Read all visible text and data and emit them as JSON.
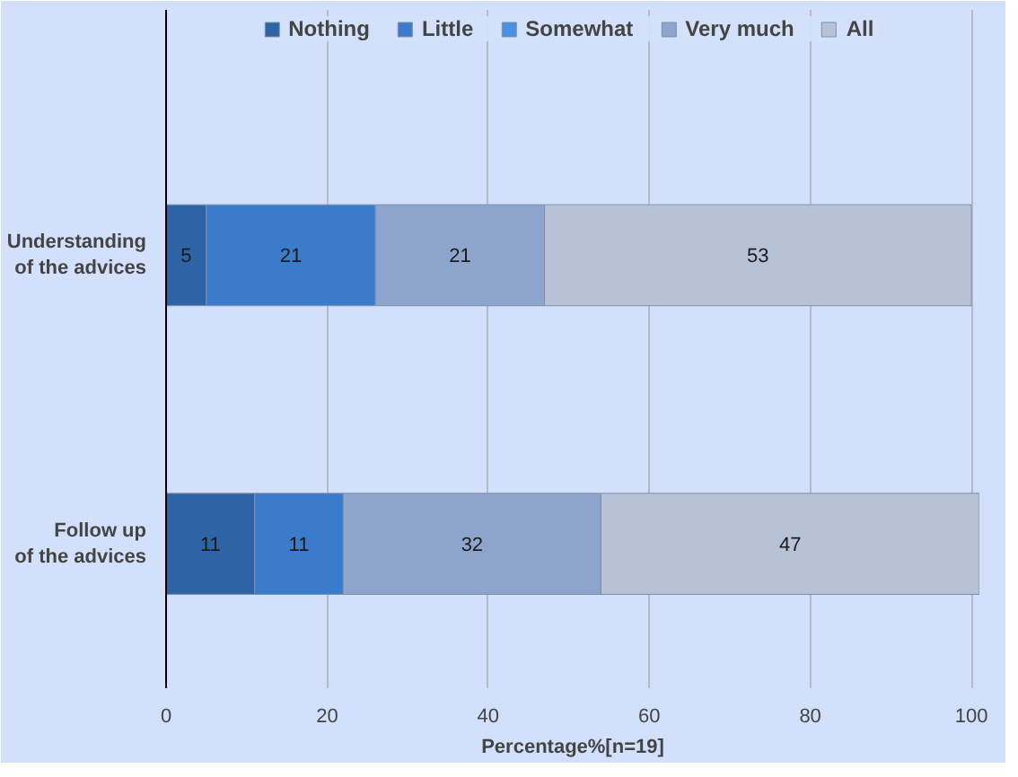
{
  "chart_data": {
    "type": "bar",
    "orientation": "horizontal",
    "stacked": true,
    "data_labels": true,
    "categories": [
      "Understanding of the advices",
      "Follow up of the advices"
    ],
    "series": [
      {
        "name": "Nothing",
        "color": "#2e64a6",
        "values": [
          5,
          11
        ]
      },
      {
        "name": "Little",
        "color": "#3a7bcc",
        "values": [
          21,
          11
        ]
      },
      {
        "name": "Somewhat",
        "color": "#4a90e2",
        "values": [
          null,
          null
        ]
      },
      {
        "name": "Very much",
        "color": "#8da4cc",
        "values": [
          21,
          32
        ]
      },
      {
        "name": "All",
        "color": "#b8c2d6",
        "values": [
          53,
          47
        ]
      }
    ],
    "xlim": [
      0,
      101
    ],
    "xticks": [
      0,
      20,
      40,
      60,
      80,
      100
    ],
    "xlabel": "Percentage%[n=19]",
    "grid": "x",
    "legend": "top"
  }
}
